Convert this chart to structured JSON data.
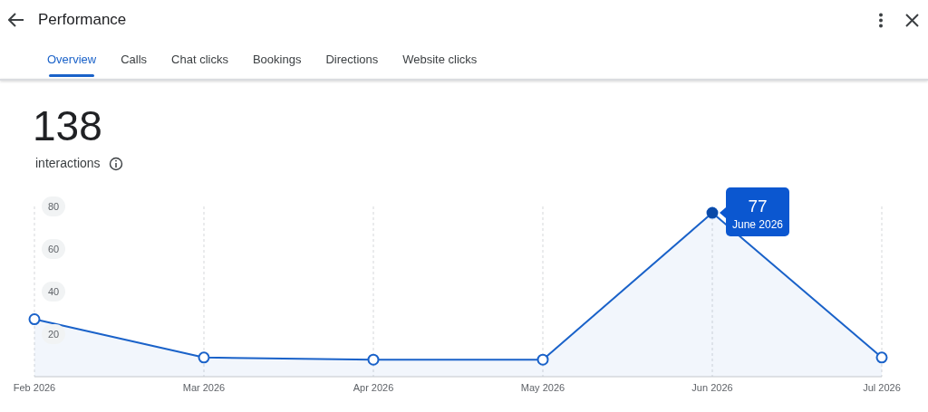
{
  "chart_data": {
    "type": "area",
    "title": "Performance",
    "categories": [
      "Feb 2026",
      "Mar 2026",
      "Apr 2026",
      "May 2026",
      "Jun 2026",
      "Jul 2026"
    ],
    "series": [
      {
        "color": "#1a62c9",
        "values": [
          27,
          9,
          8,
          8,
          77,
          9
        ]
      }
    ],
    "ylim": [
      0,
      80
    ],
    "yticks": [
      20,
      40,
      60,
      80
    ],
    "grid": "x",
    "marker": "circle",
    "line_style": "solid",
    "annotations": [
      "Overview",
      "Calls",
      "Chat clicks",
      "Bookings",
      "Directions",
      "Website clicks",
      "138",
      "interactions",
      {
        "text": "77",
        "x": "Jun 2026",
        "y": 77
      },
      {
        "text": "June 2026",
        "x": "Jun 2026",
        "y": 77
      }
    ]
  }
}
